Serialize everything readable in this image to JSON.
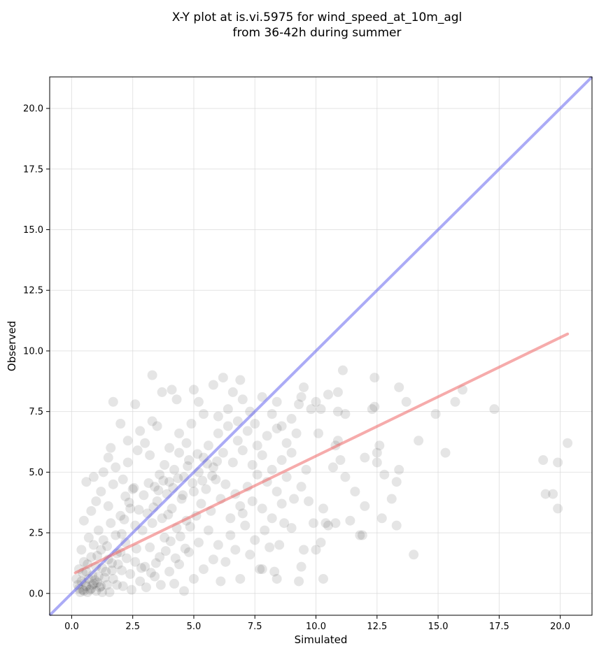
{
  "chart_data": {
    "type": "scatter",
    "title_line1": "X-Y plot at is.vi.5975 for wind_speed_at_10m_agl",
    "title_line2": "from 36-42h during summer",
    "xlabel": "Simulated",
    "ylabel": "Observed",
    "xlim": [
      -0.9,
      21.3
    ],
    "ylim": [
      -0.9,
      21.3
    ],
    "xticks": [
      0.0,
      2.5,
      5.0,
      7.5,
      10.0,
      12.5,
      15.0,
      17.5,
      20.0
    ],
    "yticks": [
      0.0,
      2.5,
      5.0,
      7.5,
      10.0,
      12.5,
      15.0,
      17.5,
      20.0
    ],
    "xtick_labels": [
      "0.0",
      "2.5",
      "5.0",
      "7.5",
      "10.0",
      "12.5",
      "15.0",
      "17.5",
      "20.0"
    ],
    "ytick_labels": [
      "0.0",
      "2.5",
      "5.0",
      "7.5",
      "10.0",
      "12.5",
      "15.0",
      "17.5",
      "20.0"
    ],
    "grid": true,
    "colors": {
      "points": "#000000",
      "identity_line": "#6666ee",
      "fit_line": "#ee6666"
    },
    "identity_line": {
      "x": [
        -0.9,
        21.3
      ],
      "y": [
        -0.9,
        21.3
      ]
    },
    "fit_line": {
      "x": [
        0.15,
        20.3
      ],
      "y": [
        0.85,
        10.7
      ]
    },
    "points": [
      [
        0.3,
        0.2
      ],
      [
        0.4,
        0.5
      ],
      [
        0.5,
        0.1
      ],
      [
        0.6,
        0.3
      ],
      [
        0.7,
        0.6
      ],
      [
        0.8,
        0.2
      ],
      [
        0.9,
        0.4
      ],
      [
        1.0,
        0.1
      ],
      [
        1.1,
        0.7
      ],
      [
        1.2,
        0.3
      ],
      [
        0.3,
        1.0
      ],
      [
        0.5,
        1.3
      ],
      [
        0.6,
        0.9
      ],
      [
        0.8,
        1.5
      ],
      [
        1.0,
        1.1
      ],
      [
        1.2,
        1.8
      ],
      [
        1.4,
        0.9
      ],
      [
        1.5,
        1.4
      ],
      [
        1.7,
        0.6
      ],
      [
        1.9,
        1.2
      ],
      [
        0.2,
        0.6
      ],
      [
        0.4,
        1.8
      ],
      [
        0.7,
        2.3
      ],
      [
        0.9,
        2.0
      ],
      [
        1.1,
        2.6
      ],
      [
        1.3,
        2.2
      ],
      [
        1.6,
        2.9
      ],
      [
        1.8,
        2.4
      ],
      [
        2.0,
        1.7
      ],
      [
        2.2,
        2.1
      ],
      [
        0.5,
        3.0
      ],
      [
        0.8,
        3.4
      ],
      [
        1.0,
        3.8
      ],
      [
        1.2,
        4.2
      ],
      [
        1.5,
        3.6
      ],
      [
        1.7,
        4.5
      ],
      [
        2.0,
        3.2
      ],
      [
        2.2,
        4.0
      ],
      [
        2.4,
        3.5
      ],
      [
        2.6,
        2.8
      ],
      [
        0.6,
        4.6
      ],
      [
        0.9,
        4.8
      ],
      [
        1.3,
        5.0
      ],
      [
        1.5,
        5.6
      ],
      [
        1.6,
        6.0
      ],
      [
        1.8,
        5.2
      ],
      [
        2.1,
        4.7
      ],
      [
        2.3,
        5.4
      ],
      [
        2.5,
        4.3
      ],
      [
        2.7,
        5.9
      ],
      [
        1.7,
        7.9
      ],
      [
        2.0,
        7.0
      ],
      [
        2.3,
        6.3
      ],
      [
        2.6,
        7.8
      ],
      [
        2.8,
        6.7
      ],
      [
        3.0,
        6.2
      ],
      [
        3.2,
        5.7
      ],
      [
        3.3,
        7.1
      ],
      [
        3.3,
        9.0
      ],
      [
        3.5,
        6.9
      ],
      [
        2.1,
        0.3
      ],
      [
        2.4,
        0.8
      ],
      [
        2.6,
        1.3
      ],
      [
        2.8,
        0.5
      ],
      [
        3.0,
        1.1
      ],
      [
        3.2,
        1.9
      ],
      [
        3.4,
        0.7
      ],
      [
        3.6,
        1.5
      ],
      [
        3.8,
        2.3
      ],
      [
        4.0,
        0.9
      ],
      [
        2.9,
        2.6
      ],
      [
        3.1,
        3.3
      ],
      [
        3.3,
        2.9
      ],
      [
        3.5,
        3.8
      ],
      [
        3.7,
        3.1
      ],
      [
        3.9,
        4.1
      ],
      [
        4.1,
        3.5
      ],
      [
        4.3,
        2.7
      ],
      [
        4.5,
        3.9
      ],
      [
        4.7,
        3.0
      ],
      [
        3.4,
        4.4
      ],
      [
        3.6,
        4.9
      ],
      [
        3.8,
        5.3
      ],
      [
        4.0,
        4.6
      ],
      [
        4.2,
        5.1
      ],
      [
        4.4,
        5.8
      ],
      [
        4.6,
        4.8
      ],
      [
        4.8,
        5.5
      ],
      [
        5.0,
        4.2
      ],
      [
        5.2,
        5.0
      ],
      [
        3.7,
        8.3
      ],
      [
        4.1,
        8.4
      ],
      [
        4.3,
        8.0
      ],
      [
        4.0,
        6.0
      ],
      [
        4.4,
        6.6
      ],
      [
        4.7,
        6.2
      ],
      [
        4.9,
        7.0
      ],
      [
        5.0,
        8.4
      ],
      [
        5.2,
        7.9
      ],
      [
        5.4,
        7.4
      ],
      [
        4.2,
        0.4
      ],
      [
        4.4,
        1.2
      ],
      [
        4.6,
        0.1
      ],
      [
        4.8,
        1.7
      ],
      [
        5.0,
        0.6
      ],
      [
        5.2,
        2.1
      ],
      [
        5.4,
        1.0
      ],
      [
        5.6,
        2.6
      ],
      [
        5.8,
        1.4
      ],
      [
        6.0,
        2.0
      ],
      [
        5.1,
        3.2
      ],
      [
        5.3,
        3.7
      ],
      [
        5.5,
        4.3
      ],
      [
        5.7,
        3.4
      ],
      [
        5.9,
        4.7
      ],
      [
        6.1,
        3.9
      ],
      [
        6.3,
        4.5
      ],
      [
        6.5,
        3.1
      ],
      [
        6.7,
        4.1
      ],
      [
        6.9,
        3.6
      ],
      [
        5.4,
        5.6
      ],
      [
        5.6,
        6.1
      ],
      [
        5.8,
        5.2
      ],
      [
        6.0,
        6.6
      ],
      [
        6.2,
        5.8
      ],
      [
        6.4,
        6.9
      ],
      [
        6.6,
        5.4
      ],
      [
        6.8,
        6.3
      ],
      [
        7.0,
        5.9
      ],
      [
        7.2,
        6.7
      ],
      [
        5.8,
        8.6
      ],
      [
        6.0,
        7.3
      ],
      [
        6.2,
        8.9
      ],
      [
        6.4,
        7.6
      ],
      [
        6.6,
        8.3
      ],
      [
        6.8,
        7.1
      ],
      [
        7.0,
        8.0
      ],
      [
        6.9,
        8.8
      ],
      [
        7.3,
        7.5
      ],
      [
        7.5,
        7.0
      ],
      [
        6.1,
        0.5
      ],
      [
        6.3,
        1.3
      ],
      [
        6.5,
        2.4
      ],
      [
        6.7,
        1.8
      ],
      [
        6.9,
        0.6
      ],
      [
        7.1,
        2.8
      ],
      [
        7.3,
        1.6
      ],
      [
        7.5,
        2.2
      ],
      [
        7.7,
        1.0
      ],
      [
        7.9,
        2.6
      ],
      [
        7.0,
        3.3
      ],
      [
        7.2,
        4.4
      ],
      [
        7.4,
        3.8
      ],
      [
        7.6,
        4.9
      ],
      [
        7.8,
        3.5
      ],
      [
        8.0,
        4.6
      ],
      [
        8.2,
        3.1
      ],
      [
        8.4,
        4.2
      ],
      [
        8.6,
        3.7
      ],
      [
        8.8,
        4.8
      ],
      [
        7.4,
        5.3
      ],
      [
        7.6,
        6.1
      ],
      [
        7.8,
        5.7
      ],
      [
        8.0,
        6.5
      ],
      [
        8.2,
        5.1
      ],
      [
        8.4,
        6.8
      ],
      [
        8.6,
        5.5
      ],
      [
        8.8,
        6.2
      ],
      [
        9.0,
        5.8
      ],
      [
        9.2,
        6.6
      ],
      [
        7.8,
        8.1
      ],
      [
        8.2,
        7.4
      ],
      [
        8.4,
        7.9
      ],
      [
        8.6,
        6.9
      ],
      [
        9.0,
        7.2
      ],
      [
        9.3,
        7.8
      ],
      [
        9.4,
        8.1
      ],
      [
        9.5,
        8.5
      ],
      [
        9.8,
        7.6
      ],
      [
        10.0,
        7.9
      ],
      [
        7.8,
        1.0
      ],
      [
        8.1,
        1.9
      ],
      [
        8.3,
        0.9
      ],
      [
        8.4,
        0.6
      ],
      [
        8.5,
        2.0
      ],
      [
        8.7,
        2.9
      ],
      [
        9.0,
        2.7
      ],
      [
        9.1,
        3.9
      ],
      [
        9.3,
        0.5
      ],
      [
        9.4,
        1.1
      ],
      [
        9.5,
        1.8
      ],
      [
        9.7,
        3.8
      ],
      [
        9.4,
        4.4
      ],
      [
        9.6,
        5.1
      ],
      [
        9.9,
        2.9
      ],
      [
        10.0,
        1.8
      ],
      [
        10.3,
        3.5
      ],
      [
        10.2,
        2.1
      ],
      [
        10.4,
        2.9
      ],
      [
        10.5,
        2.8
      ],
      [
        10.1,
        6.6
      ],
      [
        10.2,
        7.6
      ],
      [
        10.5,
        8.2
      ],
      [
        10.7,
        5.2
      ],
      [
        10.8,
        6.1
      ],
      [
        10.9,
        6.3
      ],
      [
        10.9,
        7.5
      ],
      [
        10.9,
        8.3
      ],
      [
        11.0,
        5.5
      ],
      [
        11.1,
        9.2
      ],
      [
        11.2,
        7.4
      ],
      [
        11.2,
        4.8
      ],
      [
        10.3,
        0.6
      ],
      [
        10.8,
        2.9
      ],
      [
        11.4,
        3.0
      ],
      [
        11.6,
        4.2
      ],
      [
        11.8,
        2.4
      ],
      [
        11.9,
        2.4
      ],
      [
        12.0,
        3.6
      ],
      [
        12.0,
        5.6
      ],
      [
        12.3,
        7.6
      ],
      [
        12.4,
        7.7
      ],
      [
        12.4,
        8.9
      ],
      [
        12.5,
        5.4
      ],
      [
        12.5,
        5.8
      ],
      [
        12.6,
        6.1
      ],
      [
        12.7,
        3.1
      ],
      [
        12.8,
        4.9
      ],
      [
        13.1,
        3.9
      ],
      [
        13.3,
        2.8
      ],
      [
        13.3,
        4.6
      ],
      [
        13.4,
        5.1
      ],
      [
        13.4,
        8.5
      ],
      [
        13.7,
        7.9
      ],
      [
        14.0,
        1.6
      ],
      [
        14.2,
        6.3
      ],
      [
        14.9,
        7.4
      ],
      [
        15.3,
        5.8
      ],
      [
        15.7,
        7.9
      ],
      [
        16.0,
        8.4
      ],
      [
        17.3,
        7.6
      ],
      [
        19.3,
        5.5
      ],
      [
        19.4,
        4.1
      ],
      [
        19.7,
        4.1
      ],
      [
        19.9,
        3.5
      ],
      [
        19.9,
        5.4
      ],
      [
        20.3,
        6.2
      ],
      [
        0.35,
        0.05
      ],
      [
        0.55,
        0.45
      ],
      [
        0.75,
        0.15
      ],
      [
        0.95,
        0.55
      ],
      [
        1.15,
        0.25
      ],
      [
        1.35,
        0.65
      ],
      [
        1.55,
        0.05
      ],
      [
        0.45,
        0.85
      ],
      [
        0.65,
        1.2
      ],
      [
        0.85,
        0.75
      ],
      [
        1.05,
        1.55
      ],
      [
        1.25,
        1.05
      ],
      [
        1.45,
        1.95
      ],
      [
        1.65,
        1.25
      ],
      [
        1.85,
        0.35
      ],
      [
        2.05,
        0.95
      ],
      [
        2.25,
        1.45
      ],
      [
        2.45,
        0.15
      ],
      [
        2.65,
        1.85
      ],
      [
        2.85,
        1.05
      ],
      [
        0.25,
        0.35
      ],
      [
        0.45,
        0.15
      ],
      [
        0.65,
        0.05
      ],
      [
        0.85,
        0.35
      ],
      [
        1.05,
        0.45
      ],
      [
        1.25,
        0.05
      ],
      [
        1.45,
        0.35
      ],
      [
        1.65,
        0.95
      ],
      [
        1.85,
        1.65
      ],
      [
        2.05,
        2.45
      ],
      [
        3.05,
        0.25
      ],
      [
        3.25,
        0.85
      ],
      [
        3.45,
        1.25
      ],
      [
        3.65,
        0.35
      ],
      [
        3.85,
        1.75
      ],
      [
        4.05,
        2.15
      ],
      [
        4.25,
        1.45
      ],
      [
        4.45,
        2.35
      ],
      [
        4.65,
        1.85
      ],
      [
        4.85,
        2.75
      ],
      [
        2.15,
        3.05
      ],
      [
        2.35,
        3.75
      ],
      [
        2.55,
        4.35
      ],
      [
        2.75,
        3.45
      ],
      [
        2.95,
        4.05
      ],
      [
        3.15,
        4.55
      ],
      [
        3.35,
        3.55
      ],
      [
        3.55,
        4.25
      ],
      [
        3.75,
        4.65
      ],
      [
        3.95,
        3.25
      ],
      [
        4.15,
        4.35
      ],
      [
        4.35,
        4.75
      ],
      [
        4.55,
        4.05
      ],
      [
        4.75,
        5.25
      ],
      [
        4.95,
        4.55
      ],
      [
        5.15,
        5.75
      ],
      [
        5.35,
        4.65
      ],
      [
        5.55,
        5.35
      ],
      [
        5.75,
        4.85
      ],
      [
        5.95,
        5.45
      ]
    ]
  }
}
